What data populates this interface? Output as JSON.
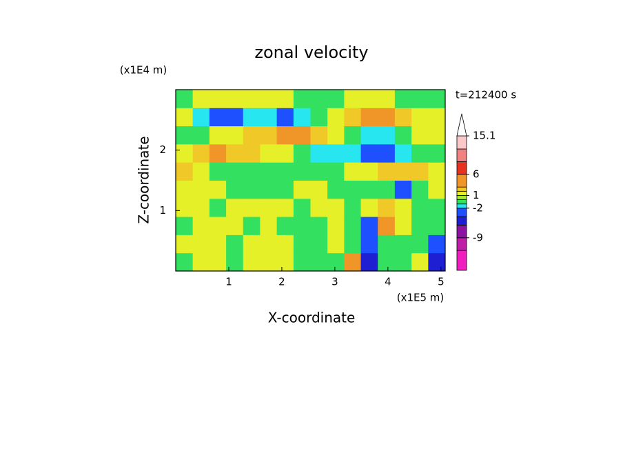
{
  "chart_data": {
    "type": "contour",
    "title": "zonal velocity",
    "x_label": "X-coordinate",
    "y_label": "Z-coordinate",
    "x_unit": "(x1E5 m)",
    "y_unit": "(x1E4 m)",
    "annotation": "t=212400 s",
    "xlim": [
      0,
      5.08
    ],
    "ylim": [
      0,
      3
    ],
    "xticks": [
      1,
      2,
      3,
      4,
      5
    ],
    "yticks": [
      1,
      2
    ],
    "x": [
      0.16,
      0.48,
      0.79,
      1.11,
      1.43,
      1.75,
      2.06,
      2.38,
      2.7,
      3.02,
      3.33,
      3.65,
      3.97,
      4.29,
      4.6,
      4.92
    ],
    "y": [
      0.15,
      0.45,
      0.75,
      1.05,
      1.35,
      1.65,
      1.95,
      2.25,
      2.55,
      2.85
    ],
    "values": [
      [
        -0.5,
        1.5,
        1.5,
        -0.5,
        1.5,
        1.5,
        1.5,
        -0.5,
        -0.5,
        -0.5,
        4,
        -5,
        -0.5,
        -0.5,
        1.5,
        -5
      ],
      [
        1.5,
        1.5,
        1.5,
        -0.5,
        1.5,
        1.5,
        1.5,
        -0.5,
        -0.5,
        1.5,
        -0.5,
        -3,
        -0.5,
        -0.5,
        -0.5,
        -3
      ],
      [
        -0.5,
        1.5,
        1.5,
        1.5,
        -0.5,
        1.5,
        -0.5,
        -0.5,
        -0.5,
        1.5,
        -0.5,
        -3,
        4,
        1.5,
        -0.5,
        -0.5
      ],
      [
        1.5,
        1.5,
        -0.5,
        1.5,
        1.5,
        1.5,
        1.5,
        -0.5,
        1.5,
        1.5,
        -0.5,
        1.5,
        2.5,
        1.5,
        -0.5,
        -0.5
      ],
      [
        1.5,
        1.5,
        1.5,
        -0.5,
        -0.5,
        -0.5,
        -0.5,
        1.5,
        1.5,
        -0.5,
        -0.5,
        -0.5,
        -0.5,
        -3,
        -0.5,
        1.5
      ],
      [
        2.5,
        1.5,
        -0.5,
        -0.5,
        -0.5,
        -0.5,
        -0.5,
        -0.5,
        -0.5,
        -0.5,
        1.5,
        1.5,
        2.5,
        2.5,
        2.5,
        1.5
      ],
      [
        1.5,
        2.5,
        4,
        2.5,
        2.5,
        1.5,
        1.5,
        -0.5,
        -1.5,
        -1.5,
        -1.5,
        -3,
        -3,
        -1.5,
        -0.5,
        -0.5
      ],
      [
        -0.5,
        -0.5,
        1.5,
        1.5,
        2.5,
        2.5,
        4,
        4,
        2.5,
        1.5,
        -0.5,
        -1.5,
        -1.5,
        -0.5,
        1.5,
        1.5
      ],
      [
        1.5,
        -1.5,
        -3,
        -3,
        -1.5,
        -1.5,
        -3,
        -1.5,
        -0.5,
        1.5,
        2.5,
        4,
        4,
        2.5,
        1.5,
        1.5
      ],
      [
        -0.5,
        1.5,
        1.5,
        1.5,
        1.5,
        1.5,
        1.5,
        -0.5,
        -0.5,
        -0.5,
        1.5,
        1.5,
        1.5,
        -0.5,
        -0.5,
        -0.5
      ]
    ],
    "colorbar": {
      "levels": [
        -16.7,
        -12,
        -9,
        -6,
        -4,
        -2,
        -1,
        0,
        1,
        2,
        3,
        6,
        9,
        12,
        15.1
      ],
      "colors": [
        "#f01ebe",
        "#c01ea8",
        "#8c14a0",
        "#1e1ed2",
        "#1e50ff",
        "#28e6f0",
        "#33e060",
        "#a0e632",
        "#e6f028",
        "#f0c828",
        "#f09628",
        "#e6321e",
        "#f08282",
        "#fac8c8"
      ],
      "ticks": [
        15.1,
        6,
        1,
        -2,
        -9
      ]
    }
  }
}
